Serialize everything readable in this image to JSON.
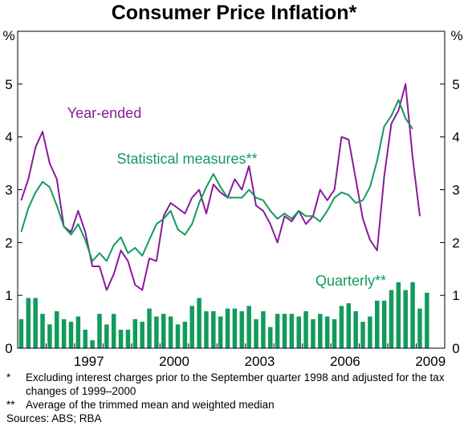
{
  "chart_data": {
    "type": "line",
    "title": "Consumer Price Inflation*",
    "unit_left": "%",
    "unit_right": "%",
    "ylim": [
      0,
      6
    ],
    "yticks": [
      0,
      1,
      2,
      3,
      4,
      5
    ],
    "x_tick_labels": [
      "1997",
      "2000",
      "2003",
      "2006",
      "2009"
    ],
    "x_start": "1995-Q1",
    "x_end": "2009-Q4",
    "quarters": [
      "1995-Q1",
      "1995-Q2",
      "1995-Q3",
      "1995-Q4",
      "1996-Q1",
      "1996-Q2",
      "1996-Q3",
      "1996-Q4",
      "1997-Q1",
      "1997-Q2",
      "1997-Q3",
      "1997-Q4",
      "1998-Q1",
      "1998-Q2",
      "1998-Q3",
      "1998-Q4",
      "1999-Q1",
      "1999-Q2",
      "1999-Q3",
      "1999-Q4",
      "2000-Q1",
      "2000-Q2",
      "2000-Q3",
      "2000-Q4",
      "2001-Q1",
      "2001-Q2",
      "2001-Q3",
      "2001-Q4",
      "2002-Q1",
      "2002-Q2",
      "2002-Q3",
      "2002-Q4",
      "2003-Q1",
      "2003-Q2",
      "2003-Q3",
      "2003-Q4",
      "2004-Q1",
      "2004-Q2",
      "2004-Q3",
      "2004-Q4",
      "2005-Q1",
      "2005-Q2",
      "2005-Q3",
      "2005-Q4",
      "2006-Q1",
      "2006-Q2",
      "2006-Q3",
      "2006-Q4",
      "2007-Q1",
      "2007-Q2",
      "2007-Q3",
      "2007-Q4",
      "2008-Q1",
      "2008-Q2",
      "2008-Q3",
      "2008-Q4",
      "2009-Q1",
      "2009-Q2"
    ],
    "series": [
      {
        "name": "Year-ended",
        "kind": "line",
        "color": "#8b1a9b",
        "values": [
          2.8,
          3.2,
          3.8,
          4.1,
          3.5,
          3.2,
          2.3,
          2.2,
          2.6,
          2.2,
          1.55,
          1.55,
          1.1,
          1.4,
          1.85,
          1.65,
          1.2,
          1.1,
          1.7,
          1.65,
          2.5,
          2.75,
          2.65,
          2.55,
          2.85,
          3.0,
          2.55,
          3.1,
          2.95,
          2.85,
          3.2,
          3.0,
          3.45,
          2.7,
          2.6,
          2.35,
          2.0,
          2.5,
          2.4,
          2.6,
          2.35,
          2.5,
          3.0,
          2.8,
          3.0,
          4.0,
          3.95,
          3.2,
          2.45,
          2.05,
          1.85,
          3.25,
          4.25,
          4.5,
          5.0,
          3.6,
          2.5,
          null
        ]
      },
      {
        "name": "Statistical measures**",
        "kind": "line",
        "color": "#129b5c",
        "values": [
          2.2,
          2.65,
          2.95,
          3.15,
          3.05,
          2.7,
          2.3,
          2.15,
          2.35,
          2.05,
          1.65,
          1.8,
          1.65,
          1.95,
          2.1,
          1.8,
          1.9,
          1.75,
          2.05,
          2.35,
          2.45,
          2.6,
          2.25,
          2.15,
          2.35,
          2.75,
          3.05,
          3.3,
          3.05,
          2.85,
          2.85,
          2.85,
          3.0,
          2.85,
          2.8,
          2.6,
          2.45,
          2.55,
          2.45,
          2.6,
          2.5,
          2.5,
          2.4,
          2.6,
          2.85,
          2.95,
          2.9,
          2.75,
          2.8,
          3.05,
          3.55,
          4.2,
          4.4,
          4.7,
          4.35,
          4.15,
          null,
          null
        ]
      },
      {
        "name": "Quarterly**",
        "kind": "bar",
        "color": "#129b5c",
        "values": [
          0.55,
          0.95,
          0.95,
          0.65,
          0.45,
          0.7,
          0.55,
          0.5,
          0.6,
          0.35,
          0.15,
          0.65,
          0.45,
          0.65,
          0.35,
          0.35,
          0.55,
          0.5,
          0.75,
          0.6,
          0.65,
          0.6,
          0.45,
          0.5,
          0.8,
          0.95,
          0.7,
          0.7,
          0.6,
          0.75,
          0.75,
          0.7,
          0.8,
          0.55,
          0.7,
          0.4,
          0.65,
          0.65,
          0.65,
          0.6,
          0.7,
          0.55,
          0.65,
          0.6,
          0.55,
          0.8,
          0.85,
          0.7,
          0.5,
          0.6,
          0.9,
          0.9,
          1.1,
          1.25,
          1.1,
          1.25,
          0.75,
          1.05
        ]
      }
    ],
    "labels": {
      "year_ended": "Year-ended",
      "statistical": "Statistical measures**",
      "quarterly": "Quarterly**"
    },
    "grid": false
  },
  "notes": [
    {
      "mark": "*",
      "text": "Excluding interest charges prior to the September quarter 1998 and adjusted for the tax changes of 1999–2000"
    },
    {
      "mark": "**",
      "text": "Average of the trimmed mean and weighted median"
    }
  ],
  "sources": "Sources: ABS; RBA"
}
